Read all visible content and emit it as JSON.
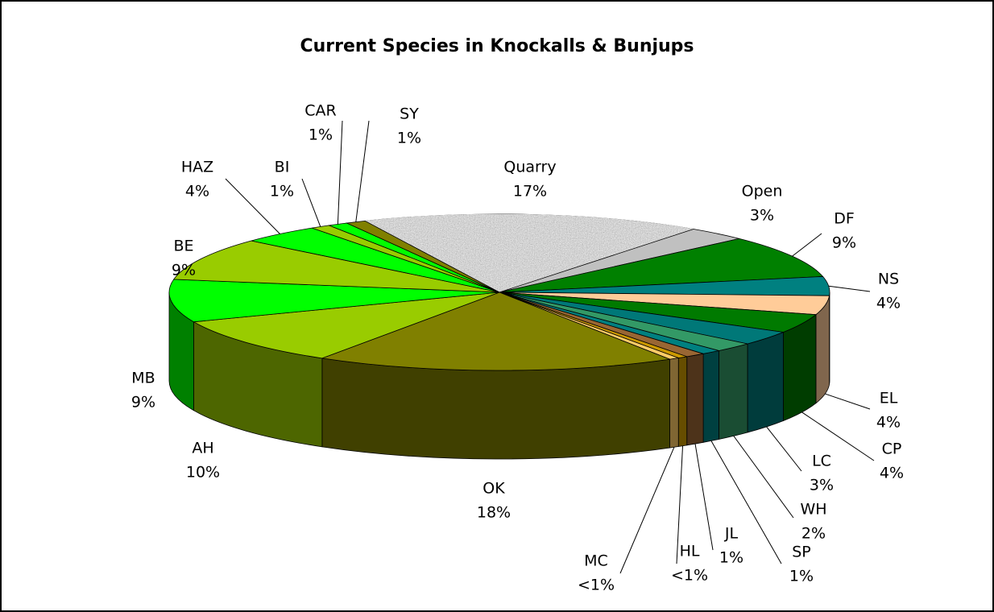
{
  "chart_data": {
    "type": "pie3d",
    "title": "Current Species in Knockalls & Bunjups",
    "categories": [
      "Quarry",
      "Open",
      "DF",
      "NS",
      "EL",
      "CP",
      "LC",
      "WH",
      "SP",
      "JL",
      "HL",
      "MC",
      "OK",
      "AH",
      "MB",
      "BE",
      "HAZ",
      "BI",
      "CAR",
      "SY"
    ],
    "values": [
      17,
      3,
      9,
      4,
      4,
      4,
      3,
      2,
      1,
      1,
      0.5,
      0.5,
      18,
      10,
      9,
      9,
      4,
      1,
      1,
      1
    ],
    "value_labels": [
      "17%",
      "3%",
      "9%",
      "4%",
      "4%",
      "4%",
      "3%",
      "2%",
      "1%",
      "1%",
      "<1%",
      "<1%",
      "18%",
      "10%",
      "9%",
      "9%",
      "4%",
      "1%",
      "1%",
      "1%"
    ],
    "colors": [
      "#b4b4b4",
      "#c0c0c0",
      "#008000",
      "#008080",
      "#ffcc99",
      "#007a00",
      "#007878",
      "#339966",
      "#008080",
      "#996633",
      "#cc9900",
      "#ffcc66",
      "#808000",
      "#99cc00",
      "#00ff00",
      "#99cc00",
      "#00ff00",
      "#99cc00",
      "#00ff00",
      "#808000"
    ],
    "patterns": [
      "speckle",
      null,
      null,
      null,
      null,
      null,
      null,
      null,
      null,
      null,
      null,
      null,
      null,
      null,
      null,
      null,
      null,
      null,
      null,
      null
    ]
  }
}
